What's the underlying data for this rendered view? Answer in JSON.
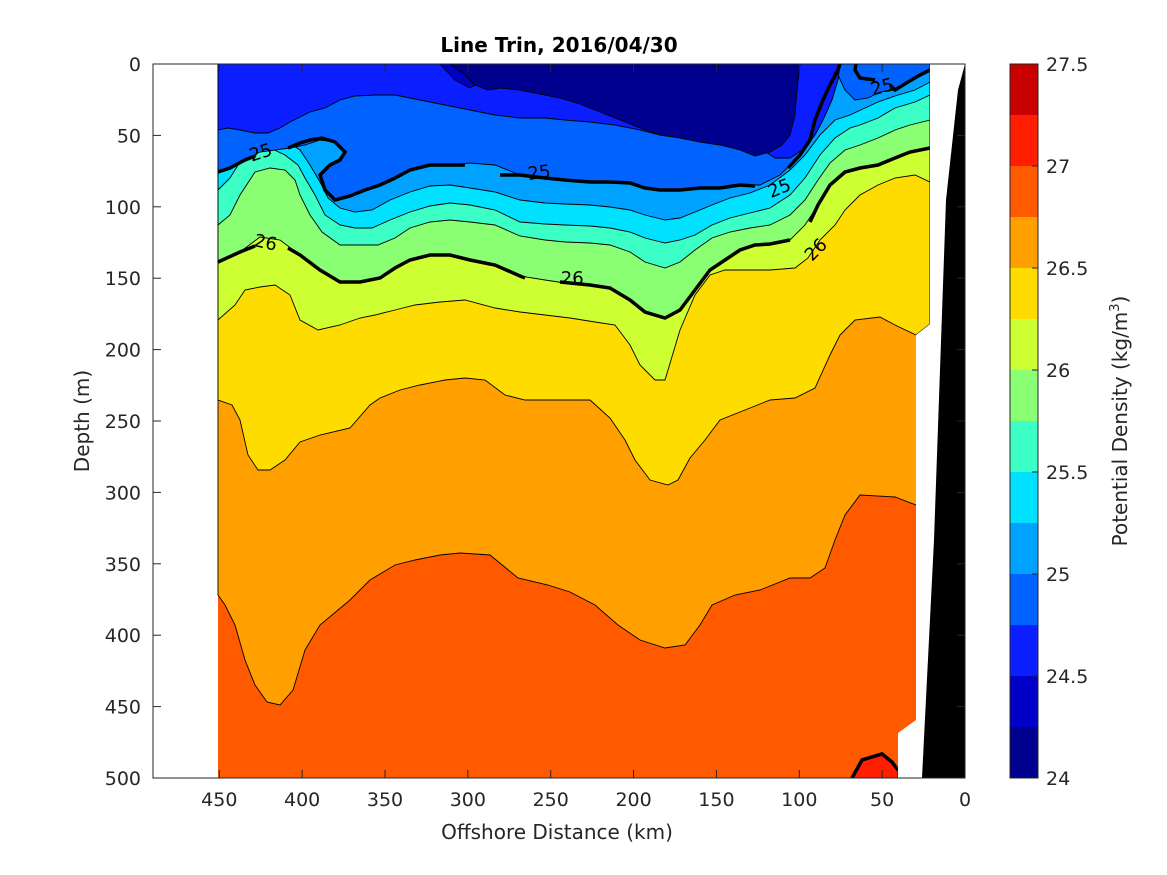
{
  "chart_data": {
    "type": "contour",
    "title": "Line Trin, 2016/04/30",
    "xlabel": "Offshore Distance (km)",
    "ylabel": "Depth (m)",
    "colorbar_label": "Potential Density (kg/m",
    "colorbar_label_sup": "3",
    "colorbar_label_end": ")",
    "xlim": [
      490,
      0
    ],
    "ylim": [
      500,
      0
    ],
    "x_reversed": true,
    "y_reversed": true,
    "xticks": [
      "450",
      "400",
      "350",
      "300",
      "250",
      "200",
      "150",
      "100",
      "50",
      "0"
    ],
    "yticks": [
      "0",
      "50",
      "100",
      "150",
      "200",
      "250",
      "300",
      "350",
      "400",
      "450",
      "500"
    ],
    "colorbar_ticks": [
      "24",
      "24.5",
      "25",
      "25.5",
      "26",
      "26.5",
      "27",
      "27.5"
    ],
    "levels": [
      24,
      24.25,
      24.5,
      24.75,
      25,
      25.25,
      25.5,
      25.75,
      26,
      26.25,
      26.5,
      26.75,
      27,
      27.25,
      27.5
    ],
    "colors": [
      "#00008f",
      "#0000c9",
      "#0a1eff",
      "#0062ff",
      "#00a2ff",
      "#00e0ff",
      "#3bffc4",
      "#8bff74",
      "#cdff32",
      "#ffdc00",
      "#ff9f00",
      "#ff5a00",
      "#ff1f00",
      "#c80000"
    ],
    "contour_labels": [
      {
        "text": "25",
        "x": 425,
        "y": 62
      },
      {
        "text": "25",
        "x": 257,
        "y": 76
      },
      {
        "text": "25",
        "x": 112,
        "y": 87
      },
      {
        "text": "25",
        "x": 50,
        "y": 16
      },
      {
        "text": "26",
        "x": 422,
        "y": 125
      },
      {
        "text": "26",
        "x": 237,
        "y": 150
      },
      {
        "text": "26",
        "x": 90,
        "y": 130
      }
    ],
    "sections": {
      "data_x_range": [
        450,
        20
      ],
      "bands": [
        {
          "level_min": 24,
          "level_max": 24.25,
          "depth_top": 0,
          "depth_bottom": 60,
          "x_from": 290,
          "x_to": 95
        },
        {
          "level_min": 24.5,
          "level_max": 24.75,
          "depth_top": 0,
          "depth_bottom": 75
        },
        {
          "level_min": 24.75,
          "level_max": 25,
          "depth_top": 40,
          "depth_bottom": 100
        },
        {
          "level_min": 25,
          "level_max": 25.25,
          "depth_top": 70,
          "depth_bottom": 110
        },
        {
          "level_min": 25.25,
          "level_max": 25.5,
          "depth_top": 85,
          "depth_bottom": 125
        },
        {
          "level_min": 25.5,
          "level_max": 25.75,
          "depth_top": 100,
          "depth_bottom": 140
        },
        {
          "level_min": 25.75,
          "level_max": 26,
          "depth_top": 115,
          "depth_bottom": 180
        },
        {
          "level_min": 26,
          "level_max": 26.25,
          "depth_top": 140,
          "depth_bottom": 225
        },
        {
          "level_min": 26.25,
          "level_max": 26.5,
          "depth_top": 160,
          "depth_bottom": 295
        },
        {
          "level_min": 26.5,
          "level_max": 26.75,
          "depth_top": 200,
          "depth_bottom": 450
        },
        {
          "level_min": 26.75,
          "level_max": 27,
          "depth_top": 300,
          "depth_bottom": 500
        },
        {
          "level_min": 27,
          "level_max": 27.25,
          "depth_top": 482,
          "depth_bottom": 500,
          "x_from": 70,
          "x_to": 40
        }
      ]
    }
  }
}
